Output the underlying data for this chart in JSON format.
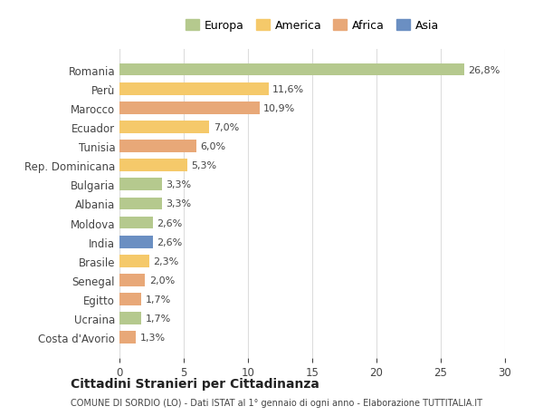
{
  "countries": [
    "Romania",
    "Perù",
    "Marocco",
    "Ecuador",
    "Tunisia",
    "Rep. Dominicana",
    "Bulgaria",
    "Albania",
    "Moldova",
    "India",
    "Brasile",
    "Senegal",
    "Egitto",
    "Ucraina",
    "Costa d'Avorio"
  ],
  "values": [
    26.8,
    11.6,
    10.9,
    7.0,
    6.0,
    5.3,
    3.3,
    3.3,
    2.6,
    2.6,
    2.3,
    2.0,
    1.7,
    1.7,
    1.3
  ],
  "labels": [
    "26,8%",
    "11,6%",
    "10,9%",
    "7,0%",
    "6,0%",
    "5,3%",
    "3,3%",
    "3,3%",
    "2,6%",
    "2,6%",
    "2,3%",
    "2,0%",
    "1,7%",
    "1,7%",
    "1,3%"
  ],
  "continents": [
    "Europa",
    "America",
    "Africa",
    "America",
    "Africa",
    "America",
    "Europa",
    "Europa",
    "Europa",
    "Asia",
    "America",
    "Africa",
    "Africa",
    "Europa",
    "Africa"
  ],
  "colors": {
    "Europa": "#b5c98e",
    "America": "#f5c96a",
    "Africa": "#e8a878",
    "Asia": "#6b8fc2"
  },
  "legend_order": [
    "Europa",
    "America",
    "Africa",
    "Asia"
  ],
  "title": "Cittadini Stranieri per Cittadinanza",
  "subtitle": "COMUNE DI SORDIO (LO) - Dati ISTAT al 1° gennaio di ogni anno - Elaborazione TUTTITALIA.IT",
  "xlim": [
    0,
    30
  ],
  "xticks": [
    0,
    5,
    10,
    15,
    20,
    25,
    30
  ],
  "background_color": "#ffffff",
  "grid_color": "#dddddd",
  "bar_height": 0.65
}
